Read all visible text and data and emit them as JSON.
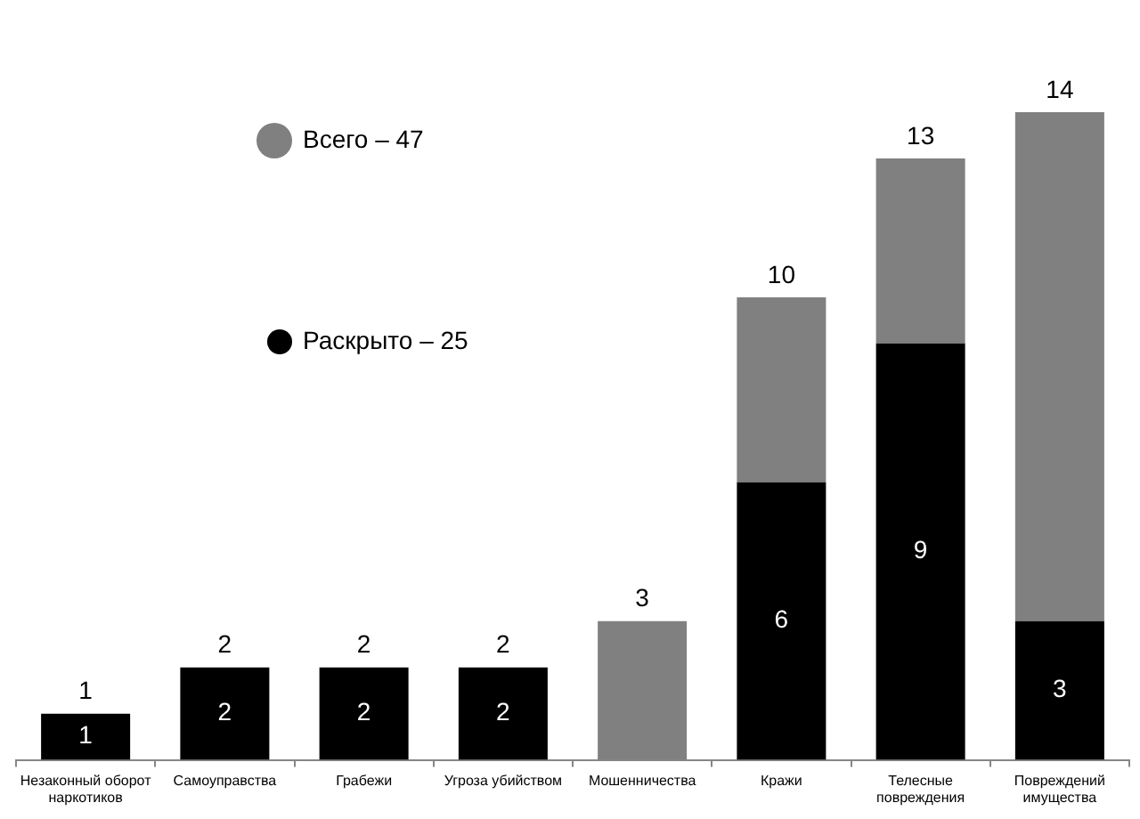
{
  "chart_data": {
    "type": "bar",
    "categories": [
      "Незаконный оборот наркотиков",
      "Самоуправства",
      "Грабежи",
      "Угроза убийством",
      "Мошенничества",
      "Кражи",
      "Телесные повреждения",
      "Повреждений имущества"
    ],
    "stacked": true,
    "series": [
      {
        "name": "Раскрыто – 25",
        "color": "#000000",
        "values": [
          1,
          2,
          2,
          2,
          0,
          6,
          9,
          3
        ],
        "value_labels": [
          "1",
          "2",
          "2",
          "2",
          null,
          "6",
          "9",
          "3"
        ]
      },
      {
        "name": "Всего – 47",
        "color": "#808080",
        "values": [
          0,
          0,
          0,
          0,
          3,
          4,
          4,
          11
        ]
      }
    ],
    "totals": [
      "1",
      "2",
      "2",
      "2",
      "3",
      "10",
      "13",
      "14"
    ],
    "tick_labels": "x",
    "legend": "top left"
  }
}
